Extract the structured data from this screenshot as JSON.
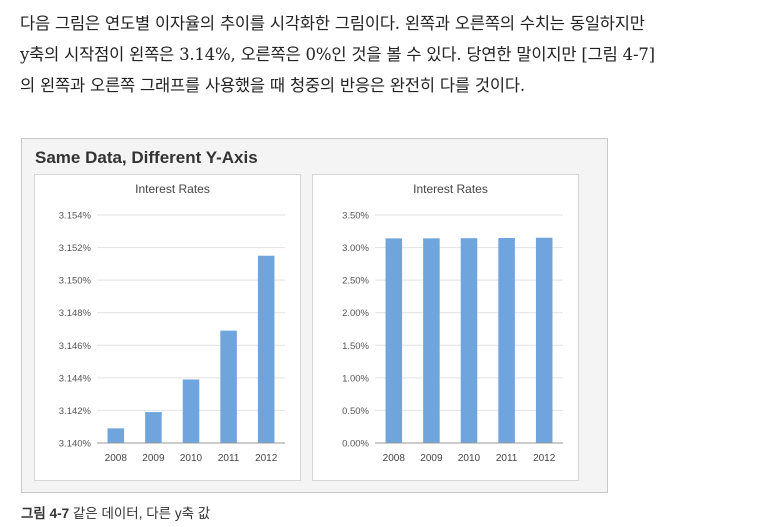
{
  "paragraph": {
    "lines": [
      "다음 그림은 연도별 이자율의 추이를 시각화한 그림이다. 왼쪽과 오른쪽의 수치는 동일하지만",
      "y축의 시작점이 왼쪽은 3.14%, 오른쪽은 0%인 것을 볼 수 있다. 당연한 말이지만 [그림 4-7]",
      "의 왼쪽과 오른쪽 그래프를 사용했을 때 청중의 반응은 완전히 다를 것이다."
    ]
  },
  "figure": {
    "title": "Same Data, Different Y-Axis",
    "caption_label": "그림 4-7",
    "caption_text": "같은 데이터, 다른 y축 값"
  },
  "chart_data": [
    {
      "type": "bar",
      "title": "Interest Rates",
      "categories": [
        "2008",
        "2009",
        "2010",
        "2011",
        "2012"
      ],
      "values": [
        3.1409,
        3.1419,
        3.1439,
        3.1469,
        3.1515
      ],
      "ylim": [
        3.14,
        3.154
      ],
      "yticks": [
        3.14,
        3.142,
        3.144,
        3.146,
        3.148,
        3.15,
        3.152,
        3.154
      ],
      "ytick_labels": [
        "3.140%",
        "3.142%",
        "3.144%",
        "3.146%",
        "3.148%",
        "3.150%",
        "3.152%",
        "3.154%"
      ],
      "grid": true,
      "color": "#6fa5dc"
    },
    {
      "type": "bar",
      "title": "Interest Rates",
      "categories": [
        "2008",
        "2009",
        "2010",
        "2011",
        "2012"
      ],
      "values": [
        3.1409,
        3.1419,
        3.1439,
        3.1469,
        3.1515
      ],
      "ylim": [
        0,
        3.5
      ],
      "yticks": [
        0,
        0.5,
        1.0,
        1.5,
        2.0,
        2.5,
        3.0,
        3.5
      ],
      "ytick_labels": [
        "0.00%",
        "0.50%",
        "1.00%",
        "1.50%",
        "2.00%",
        "2.50%",
        "3.00%",
        "3.50%"
      ],
      "grid": true,
      "color": "#6fa5dc"
    }
  ]
}
